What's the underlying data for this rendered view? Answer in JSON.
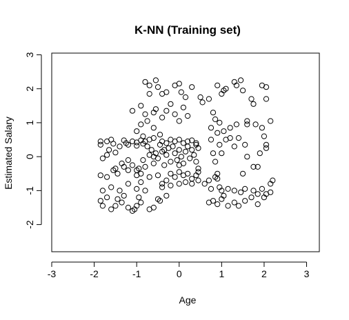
{
  "chart_data": {
    "type": "scatter",
    "title": "K-NN (Training set)",
    "xlabel": "Age",
    "ylabel": "Estimated Salary",
    "xlim": [
      -3.0,
      3.3
    ],
    "ylim": [
      -2.8,
      3.05
    ],
    "xticks": [
      -3,
      -2,
      -1,
      0,
      1,
      2,
      3
    ],
    "yticks": [
      -2,
      -1,
      0,
      1,
      2,
      3
    ],
    "grid": false,
    "marker": "open-circle",
    "points": [
      [
        -1.85,
        0.45
      ],
      [
        -1.85,
        0.35
      ],
      [
        -1.7,
        0.45
      ],
      [
        -1.6,
        0.5
      ],
      [
        -1.55,
        0.38
      ],
      [
        -1.8,
        -0.05
      ],
      [
        -1.7,
        0.05
      ],
      [
        -1.65,
        0.2
      ],
      [
        -1.5,
        0.12
      ],
      [
        -1.4,
        0.3
      ],
      [
        -1.3,
        0.48
      ],
      [
        -1.25,
        0.4
      ],
      [
        -1.2,
        0.35
      ],
      [
        -1.1,
        0.45
      ],
      [
        -1.0,
        0.42
      ],
      [
        -1.0,
        0.32
      ],
      [
        -0.9,
        0.48
      ],
      [
        -0.85,
        0.38
      ],
      [
        -0.8,
        0.45
      ],
      [
        -0.75,
        0.3
      ],
      [
        -0.7,
        0.5
      ],
      [
        -0.65,
        0.2
      ],
      [
        -0.6,
        0.55
      ],
      [
        -1.85,
        -0.55
      ],
      [
        -1.7,
        -0.6
      ],
      [
        -1.55,
        -0.4
      ],
      [
        -1.45,
        -0.5
      ],
      [
        -1.35,
        -0.2
      ],
      [
        -1.3,
        -0.3
      ],
      [
        -1.2,
        -0.1
      ],
      [
        -1.1,
        -0.25
      ],
      [
        -1.0,
        -0.4
      ],
      [
        -0.95,
        -0.35
      ],
      [
        -0.85,
        -0.1
      ],
      [
        -0.8,
        -0.3
      ],
      [
        -0.7,
        0.05
      ],
      [
        -0.6,
        -0.2
      ],
      [
        -0.55,
        0.1
      ],
      [
        -0.5,
        -0.05
      ],
      [
        -0.4,
        0.15
      ],
      [
        -0.35,
        -0.25
      ],
      [
        -0.3,
        0.05
      ],
      [
        -0.25,
        0.25
      ],
      [
        -0.2,
        -0.15
      ],
      [
        -0.15,
        0.3
      ],
      [
        -0.1,
        0.1
      ],
      [
        -0.05,
        -0.1
      ],
      [
        0.0,
        0.2
      ],
      [
        0.05,
        0.0
      ],
      [
        0.1,
        -0.2
      ],
      [
        0.15,
        0.15
      ],
      [
        0.2,
        0.3
      ],
      [
        0.25,
        -0.05
      ],
      [
        0.3,
        0.2
      ],
      [
        0.35,
        0.05
      ],
      [
        0.4,
        -0.15
      ],
      [
        0.45,
        0.25
      ],
      [
        -0.2,
        -0.5
      ],
      [
        -0.1,
        -0.6
      ],
      [
        0.0,
        -0.45
      ],
      [
        0.1,
        -0.55
      ],
      [
        0.2,
        -0.5
      ],
      [
        0.3,
        -0.65
      ],
      [
        0.4,
        -0.55
      ],
      [
        0.45,
        -0.45
      ],
      [
        -0.4,
        -0.8
      ],
      [
        -0.3,
        -0.7
      ],
      [
        -0.2,
        -0.85
      ],
      [
        0.0,
        -0.8
      ],
      [
        0.15,
        -0.75
      ],
      [
        0.3,
        -0.8
      ],
      [
        0.45,
        -0.7
      ],
      [
        -0.4,
        0.45
      ],
      [
        -0.3,
        0.4
      ],
      [
        -0.2,
        0.5
      ],
      [
        -0.1,
        0.45
      ],
      [
        0.0,
        0.5
      ],
      [
        0.1,
        0.4
      ],
      [
        0.2,
        0.45
      ],
      [
        0.3,
        0.48
      ],
      [
        0.4,
        0.4
      ],
      [
        -1.85,
        -1.3
      ],
      [
        -1.8,
        -1.45
      ],
      [
        -1.7,
        -1.2
      ],
      [
        -1.6,
        -1.55
      ],
      [
        -1.5,
        -1.45
      ],
      [
        -1.45,
        -1.25
      ],
      [
        -1.35,
        -1.35
      ],
      [
        -1.3,
        -1.15
      ],
      [
        -1.2,
        -1.5
      ],
      [
        -1.1,
        -1.6
      ],
      [
        -1.05,
        -1.55
      ],
      [
        -1.0,
        -1.45
      ],
      [
        -0.95,
        -1.2
      ],
      [
        -0.9,
        -1.35
      ],
      [
        -0.8,
        -1.0
      ],
      [
        -0.7,
        -1.55
      ],
      [
        -0.6,
        -1.5
      ],
      [
        -0.5,
        -1.25
      ],
      [
        -0.45,
        -1.3
      ],
      [
        -0.4,
        -0.9
      ],
      [
        -0.3,
        -1.15
      ],
      [
        -1.8,
        -1.0
      ],
      [
        -1.6,
        -0.9
      ],
      [
        -1.4,
        -1.0
      ],
      [
        -1.2,
        -0.8
      ],
      [
        -1.0,
        -0.95
      ],
      [
        -0.9,
        -0.75
      ],
      [
        -1.1,
        1.35
      ],
      [
        -0.9,
        1.5
      ],
      [
        -0.8,
        1.25
      ],
      [
        -0.75,
        1.05
      ],
      [
        -0.6,
        1.3
      ],
      [
        -0.55,
        1.4
      ],
      [
        -0.4,
        1.15
      ],
      [
        -0.3,
        1.35
      ],
      [
        -0.2,
        1.55
      ],
      [
        -0.1,
        1.25
      ],
      [
        0.0,
        1.05
      ],
      [
        0.1,
        1.45
      ],
      [
        0.2,
        1.2
      ],
      [
        -0.8,
        2.2
      ],
      [
        -0.7,
        2.1
      ],
      [
        -0.55,
        2.25
      ],
      [
        -0.5,
        2.05
      ],
      [
        -0.4,
        1.85
      ],
      [
        -0.3,
        1.9
      ],
      [
        -0.1,
        2.1
      ],
      [
        0.0,
        2.15
      ],
      [
        0.05,
        1.9
      ],
      [
        0.15,
        1.75
      ],
      [
        0.3,
        2.05
      ],
      [
        -0.7,
        1.85
      ],
      [
        -0.9,
        0.95
      ],
      [
        -1.0,
        0.75
      ],
      [
        -0.85,
        0.6
      ],
      [
        -0.6,
        0.85
      ],
      [
        -0.45,
        0.65
      ],
      [
        0.5,
        1.75
      ],
      [
        0.55,
        1.6
      ],
      [
        0.7,
        1.7
      ],
      [
        0.8,
        1.3
      ],
      [
        0.85,
        1.1
      ],
      [
        0.95,
        1.0
      ],
      [
        1.0,
        1.85
      ],
      [
        1.05,
        1.95
      ],
      [
        0.9,
        2.1
      ],
      [
        1.1,
        2.0
      ],
      [
        1.3,
        2.2
      ],
      [
        1.35,
        2.1
      ],
      [
        1.45,
        2.25
      ],
      [
        1.5,
        1.95
      ],
      [
        1.7,
        1.7
      ],
      [
        1.75,
        1.55
      ],
      [
        1.95,
        2.1
      ],
      [
        2.05,
        2.05
      ],
      [
        2.05,
        1.7
      ],
      [
        1.6,
        1.05
      ],
      [
        1.6,
        0.95
      ],
      [
        1.8,
        0.95
      ],
      [
        1.95,
        0.85
      ],
      [
        2.0,
        0.6
      ],
      [
        2.15,
        1.05
      ],
      [
        1.35,
        0.95
      ],
      [
        1.2,
        0.85
      ],
      [
        1.05,
        0.75
      ],
      [
        0.9,
        0.7
      ],
      [
        0.75,
        0.85
      ],
      [
        0.95,
        0.35
      ],
      [
        1.0,
        0.1
      ],
      [
        1.1,
        0.5
      ],
      [
        1.2,
        0.55
      ],
      [
        1.3,
        0.3
      ],
      [
        1.4,
        0.55
      ],
      [
        1.55,
        0.35
      ],
      [
        1.6,
        0.0
      ],
      [
        1.75,
        -0.3
      ],
      [
        1.85,
        -0.3
      ],
      [
        1.9,
        0.1
      ],
      [
        2.05,
        0.35
      ],
      [
        2.05,
        0.25
      ],
      [
        1.5,
        -0.5
      ],
      [
        0.8,
        0.1
      ],
      [
        0.75,
        0.5
      ],
      [
        0.85,
        -0.15
      ],
      [
        0.9,
        -0.5
      ],
      [
        0.6,
        -0.8
      ],
      [
        0.7,
        -0.7
      ],
      [
        0.75,
        -0.95
      ],
      [
        0.85,
        -0.6
      ],
      [
        0.9,
        -0.65
      ],
      [
        0.95,
        -0.9
      ],
      [
        1.0,
        -1.0
      ],
      [
        1.05,
        -1.15
      ],
      [
        1.15,
        -0.95
      ],
      [
        1.3,
        -1.0
      ],
      [
        1.45,
        -1.05
      ],
      [
        1.55,
        -0.95
      ],
      [
        1.75,
        -1.0
      ],
      [
        1.85,
        -1.1
      ],
      [
        1.95,
        -0.95
      ],
      [
        2.05,
        -1.1
      ],
      [
        2.15,
        -0.8
      ],
      [
        2.2,
        -0.7
      ],
      [
        0.7,
        -1.35
      ],
      [
        0.8,
        -1.3
      ],
      [
        0.9,
        -1.4
      ],
      [
        1.0,
        -1.25
      ],
      [
        1.15,
        -1.45
      ],
      [
        1.3,
        -1.35
      ],
      [
        1.4,
        -1.45
      ],
      [
        1.55,
        -1.3
      ],
      [
        1.7,
        -1.2
      ],
      [
        1.85,
        -1.4
      ],
      [
        2.0,
        -1.2
      ],
      [
        2.15,
        -1.05
      ],
      [
        -1.0,
        -0.55
      ],
      [
        -0.9,
        -0.5
      ],
      [
        -1.2,
        -0.4
      ],
      [
        -1.5,
        -0.35
      ],
      [
        -0.7,
        -0.6
      ],
      [
        -0.5,
        -0.55
      ],
      [
        -0.6,
        0.0
      ],
      [
        -0.45,
        0.35
      ],
      [
        -0.35,
        0.2
      ],
      [
        0.0,
        -0.25
      ],
      [
        0.4,
        0.35
      ],
      [
        0.45,
        -0.35
      ]
    ]
  }
}
